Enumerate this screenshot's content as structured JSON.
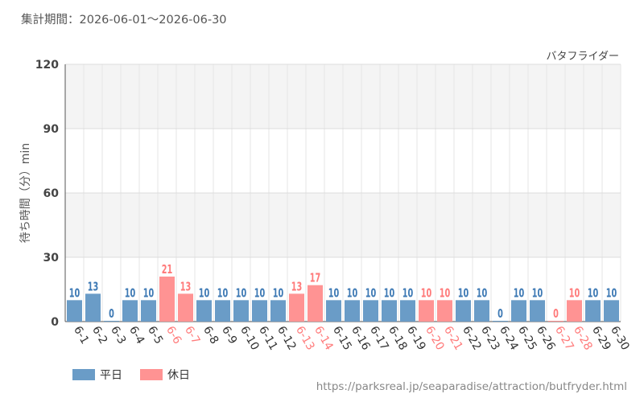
{
  "header": {
    "period_label": "集計期間：2026-06-01～2026-06-30"
  },
  "footer": {
    "source_url": "https://parksreal.jp/seaparadise/attraction/butfryder.html"
  },
  "colors": {
    "weekday": "#6a9cc7",
    "holiday": "#ff9393",
    "holiday_text": "#ff7a7a",
    "weekday_text": "#3d79b4"
  },
  "chart_data": {
    "type": "bar",
    "title": "バタフライダー",
    "ylabel": "待ち時間（分）min",
    "xlabel": "",
    "ylim": [
      0,
      120
    ],
    "yticks": [
      0,
      30,
      60,
      90,
      120
    ],
    "grid": true,
    "legend_position": "bottom-left",
    "legend": [
      {
        "key": "weekday",
        "label": "平日"
      },
      {
        "key": "holiday",
        "label": "休日"
      }
    ],
    "categories": [
      "6-1",
      "6-2",
      "6-3",
      "6-4",
      "6-5",
      "6-6",
      "6-7",
      "6-8",
      "6-9",
      "6-10",
      "6-11",
      "6-12",
      "6-13",
      "6-14",
      "6-15",
      "6-16",
      "6-17",
      "6-18",
      "6-19",
      "6-20",
      "6-21",
      "6-22",
      "6-23",
      "6-24",
      "6-25",
      "6-26",
      "6-27",
      "6-28",
      "6-29",
      "6-30"
    ],
    "values": [
      10,
      13,
      0,
      10,
      10,
      21,
      13,
      10,
      10,
      10,
      10,
      10,
      13,
      17,
      10,
      10,
      10,
      10,
      10,
      10,
      10,
      10,
      10,
      0,
      10,
      10,
      0,
      10,
      10,
      10
    ],
    "day_type": [
      "weekday",
      "weekday",
      "weekday",
      "weekday",
      "weekday",
      "holiday",
      "holiday",
      "weekday",
      "weekday",
      "weekday",
      "weekday",
      "weekday",
      "holiday",
      "holiday",
      "weekday",
      "weekday",
      "weekday",
      "weekday",
      "weekday",
      "holiday",
      "holiday",
      "weekday",
      "weekday",
      "weekday",
      "weekday",
      "weekday",
      "holiday",
      "holiday",
      "weekday",
      "weekday"
    ]
  }
}
